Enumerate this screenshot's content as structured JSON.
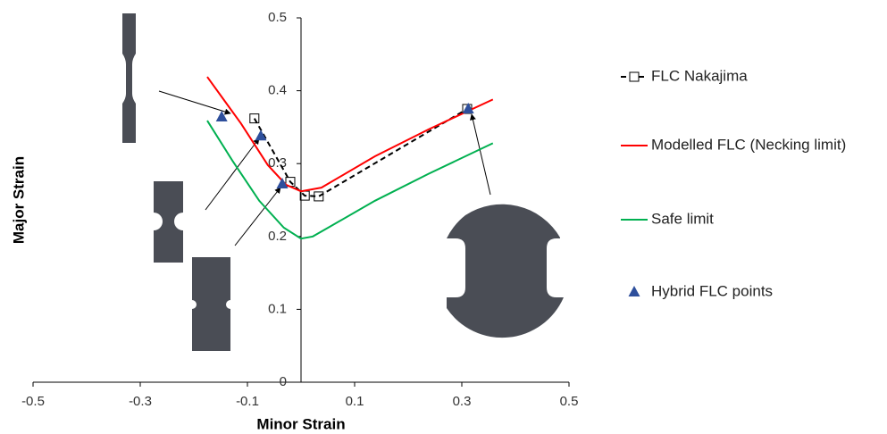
{
  "chart_data": {
    "type": "line",
    "x_label": "Minor Strain",
    "y_label": "Major Strain",
    "xlim": [
      -0.5,
      0.5
    ],
    "xticks": [
      -0.5,
      -0.3,
      -0.1,
      0.1,
      0.3,
      0.5
    ],
    "ylim": [
      0,
      0.5
    ],
    "yticks": [
      0,
      0.1,
      0.2,
      0.3,
      0.4,
      0.5
    ],
    "legend": "right",
    "series": [
      {
        "name": "FLC Nakajima",
        "color": "#000000",
        "line": "dashed",
        "marker": "square",
        "x": [
          -0.087,
          -0.02,
          0.007,
          0.033,
          0.31
        ],
        "values": [
          0.362,
          0.275,
          0.256,
          0.255,
          0.375
        ]
      },
      {
        "name": "Modelled FLC (Necking limit)",
        "color": "#ff0000",
        "line": "solid",
        "marker": "none",
        "x": [
          -0.175,
          -0.112,
          -0.062,
          -0.028,
          0,
          0.038,
          0.138,
          0.238,
          0.358
        ],
        "values": [
          0.419,
          0.355,
          0.298,
          0.271,
          0.262,
          0.267,
          0.31,
          0.347,
          0.388
        ]
      },
      {
        "name": "Safe limit",
        "color": "#00b050",
        "line": "solid",
        "marker": "none",
        "x": [
          -0.175,
          -0.128,
          -0.078,
          -0.032,
          0,
          0.022,
          0.138,
          0.238,
          0.358
        ],
        "values": [
          0.359,
          0.304,
          0.249,
          0.212,
          0.197,
          0.2,
          0.249,
          0.286,
          0.328
        ]
      },
      {
        "name": "Hybrid FLC points",
        "color": "#2e4f9c",
        "line": "none",
        "marker": "triangle",
        "x": [
          -0.148,
          -0.075,
          -0.035,
          0.312
        ],
        "values": [
          0.364,
          0.338,
          0.272,
          0.375
        ]
      }
    ]
  }
}
